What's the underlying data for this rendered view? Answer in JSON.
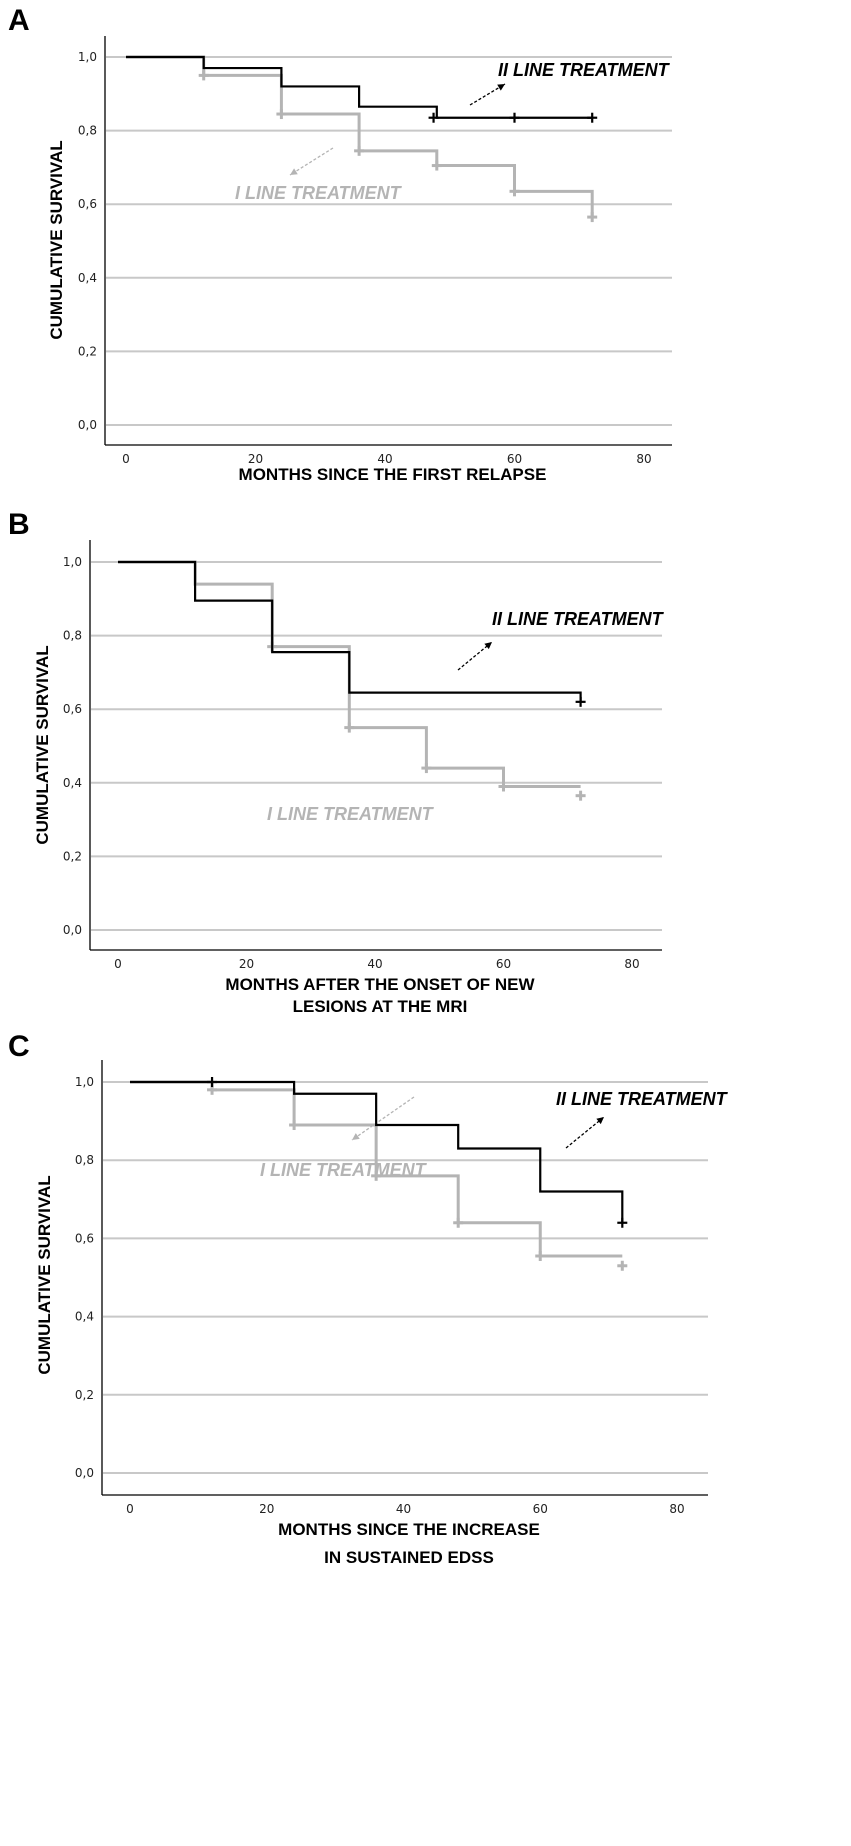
{
  "chart_data": [
    {
      "type": "line",
      "panel": "A",
      "title": "",
      "xlabel": [
        "MONTHS SINCE THE FIRST RELAPSE"
      ],
      "ylabel": "CUMULATIVE SURVIVAL",
      "xlim": [
        0,
        80
      ],
      "ylim": [
        0,
        1
      ],
      "x_ticks": [
        0,
        20,
        40,
        60,
        80
      ],
      "y_ticks": [
        0,
        0.2,
        0.4,
        0.6,
        0.8,
        1.0
      ],
      "y_tick_labels": [
        "0,0",
        "0,2",
        "0,4",
        "0,6",
        "0,8",
        "1,0"
      ],
      "series": [
        {
          "name": "II LINE TREATMENT",
          "color": "#000000",
          "steps": [
            [
              0,
              1.0
            ],
            [
              12,
              0.97
            ],
            [
              24,
              0.92
            ],
            [
              36,
              0.865
            ],
            [
              48,
              0.835
            ],
            [
              72,
              0.835
            ]
          ],
          "censor": [
            [
              47.5,
              0.835
            ],
            [
              60,
              0.835
            ],
            [
              72,
              0.835
            ]
          ]
        },
        {
          "name": "I LINE TREATMENT",
          "color": "#b4b4b4",
          "steps": [
            [
              0,
              1.0
            ],
            [
              12,
              0.95
            ],
            [
              24,
              0.845
            ],
            [
              36,
              0.745
            ],
            [
              48,
              0.705
            ],
            [
              60,
              0.635
            ],
            [
              72,
              0.565
            ]
          ],
          "censor": [
            [
              12,
              0.95
            ],
            [
              24,
              0.845
            ],
            [
              36,
              0.745
            ],
            [
              48,
              0.705
            ],
            [
              60,
              0.635
            ],
            [
              72,
              0.565
            ]
          ]
        }
      ],
      "annotations": [
        {
          "text": "II LINE TREATMENT",
          "color": "#000000"
        },
        {
          "text": "I LINE TREATMENT",
          "color": "#b4b4b4"
        }
      ]
    },
    {
      "type": "line",
      "panel": "B",
      "title": "",
      "xlabel": [
        "MONTHS AFTER THE ONSET OF NEW",
        "LESIONS AT THE MRI"
      ],
      "ylabel": "CUMULATIVE SURVIVAL",
      "xlim": [
        0,
        80
      ],
      "ylim": [
        0,
        1
      ],
      "x_ticks": [
        0,
        20,
        40,
        60,
        80
      ],
      "y_ticks": [
        0,
        0.2,
        0.4,
        0.6,
        0.8,
        1.0
      ],
      "y_tick_labels": [
        "0,0",
        "0,2",
        "0,4",
        "0,6",
        "0,8",
        "1,0"
      ],
      "series": [
        {
          "name": "II LINE TREATMENT",
          "color": "#000000",
          "steps": [
            [
              0,
              1.0
            ],
            [
              12,
              0.895
            ],
            [
              24,
              0.755
            ],
            [
              36,
              0.645
            ],
            [
              72,
              0.645
            ],
            [
              72,
              0.62
            ]
          ],
          "censor": [
            [
              72,
              0.62
            ]
          ]
        },
        {
          "name": "I LINE TREATMENT",
          "color": "#b4b4b4",
          "steps": [
            [
              0,
              1.0
            ],
            [
              12,
              0.94
            ],
            [
              24,
              0.77
            ],
            [
              36,
              0.55
            ],
            [
              48,
              0.44
            ],
            [
              60,
              0.39
            ],
            [
              72,
              0.39
            ]
          ],
          "censor": [
            [
              24,
              0.77
            ],
            [
              36,
              0.55
            ],
            [
              48,
              0.44
            ],
            [
              60,
              0.39
            ],
            [
              72,
              0.365
            ]
          ]
        }
      ],
      "annotations": [
        {
          "text": "II LINE TREATMENT",
          "color": "#000000"
        },
        {
          "text": "I LINE TREATMENT",
          "color": "#b4b4b4"
        }
      ]
    },
    {
      "type": "line",
      "panel": "C",
      "title": "",
      "xlabel": [
        "MONTHS SINCE THE INCREASE",
        "IN SUSTAINED EDSS"
      ],
      "ylabel": "CUMULATIVE SURVIVAL",
      "xlim": [
        0,
        80
      ],
      "ylim": [
        0,
        1
      ],
      "x_ticks": [
        0,
        20,
        40,
        60,
        80
      ],
      "y_ticks": [
        0,
        0.2,
        0.4,
        0.6,
        0.8,
        1.0
      ],
      "y_tick_labels": [
        "0,0",
        "0,2",
        "0,4",
        "0,6",
        "0,8",
        "1,0"
      ],
      "series": [
        {
          "name": "II LINE TREATMENT",
          "color": "#000000",
          "steps": [
            [
              0,
              1.0
            ],
            [
              24,
              0.97
            ],
            [
              36,
              0.89
            ],
            [
              48,
              0.83
            ],
            [
              60,
              0.72
            ],
            [
              72,
              0.72
            ],
            [
              72,
              0.64
            ]
          ],
          "censor": [
            [
              12,
              1.0
            ],
            [
              72,
              0.64
            ]
          ]
        },
        {
          "name": "I LINE TREATMENT",
          "color": "#b4b4b4",
          "steps": [
            [
              0,
              1.0
            ],
            [
              12,
              0.98
            ],
            [
              24,
              0.89
            ],
            [
              36,
              0.76
            ],
            [
              48,
              0.64
            ],
            [
              60,
              0.555
            ],
            [
              72,
              0.555
            ]
          ],
          "censor": [
            [
              12,
              0.98
            ],
            [
              24,
              0.89
            ],
            [
              36,
              0.76
            ],
            [
              48,
              0.64
            ],
            [
              60,
              0.555
            ],
            [
              72,
              0.53
            ]
          ]
        }
      ],
      "annotations": [
        {
          "text": "II LINE TREATMENT",
          "color": "#000000"
        },
        {
          "text": "I LINE TREATMENT",
          "color": "#b4b4b4"
        }
      ]
    }
  ]
}
